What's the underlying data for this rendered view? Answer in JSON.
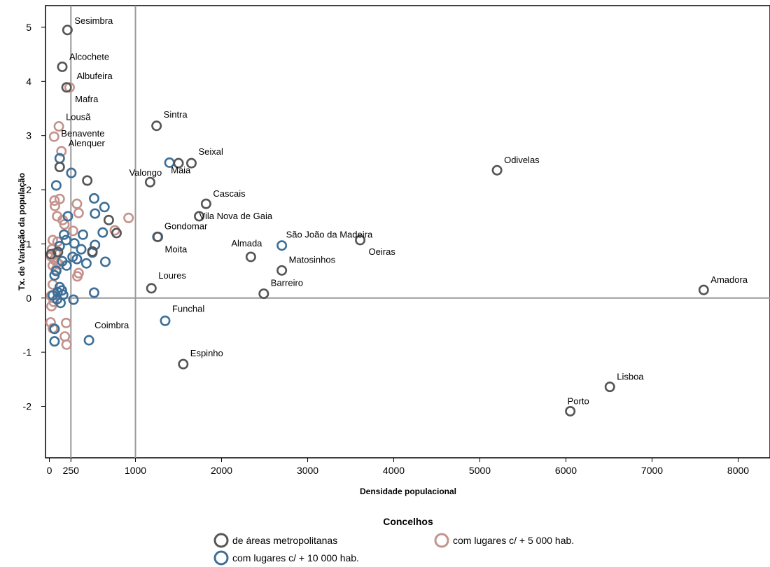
{
  "chart_data": {
    "type": "scatter",
    "xlabel": "Densidade populacional",
    "ylabel": "Tx. de Variação da população",
    "xlim": [
      -45,
      8370
    ],
    "ylim": [
      -2.95,
      5.4
    ],
    "xticks": [
      0,
      1000,
      2000,
      3000,
      4000,
      5000,
      6000,
      7000,
      8000
    ],
    "xticks_extra": [
      250
    ],
    "yticks": [
      -2,
      -1,
      0,
      1,
      2,
      3,
      4,
      5
    ],
    "reference_lines": {
      "x": [
        250,
        1000
      ],
      "y": [
        0
      ]
    },
    "grid": false,
    "legend": {
      "title": "Concelhos",
      "placement": "bottom",
      "entries": [
        {
          "label": "de áreas metropolitanas",
          "color": "#555555"
        },
        {
          "label": "com lugares c/ + 5 000 hab.",
          "color": "#c4928d"
        },
        {
          "label": "com lugares c/ + 10 000 hab.",
          "color": "#3d6f98"
        }
      ]
    },
    "series": [
      {
        "name": "de áreas metropolitanas",
        "color": "#555555",
        "points": [
          {
            "x": 210,
            "y": 4.95,
            "label": "Sesimbra"
          },
          {
            "x": 150,
            "y": 4.27,
            "label": "Alcochete"
          },
          {
            "x": 200,
            "y": 3.89,
            "label": "Mafra"
          },
          {
            "x": 120,
            "y": 2.42
          },
          {
            "x": 440,
            "y": 2.17
          },
          {
            "x": 690,
            "y": 1.44
          },
          {
            "x": 780,
            "y": 1.2
          },
          {
            "x": 500,
            "y": 0.86
          },
          {
            "x": 20,
            "y": 0.81
          },
          {
            "x": 100,
            "y": 0.85
          },
          {
            "x": 1245,
            "y": 3.18,
            "label": "Sintra"
          },
          {
            "x": 1650,
            "y": 2.49,
            "label": "Seixal"
          },
          {
            "x": 1500,
            "y": 2.49
          },
          {
            "x": 1170,
            "y": 2.14,
            "label": "Valongo"
          },
          {
            "x": 1820,
            "y": 1.74,
            "label": "Cascais"
          },
          {
            "x": 1740,
            "y": 1.51,
            "label": "Vila Nova de Gaia"
          },
          {
            "x": 1260,
            "y": 1.13,
            "label": "Moita"
          },
          {
            "x": 2340,
            "y": 0.76,
            "label": "Almada"
          },
          {
            "x": 2700,
            "y": 0.51,
            "label": "Matosinhos"
          },
          {
            "x": 2490,
            "y": 0.08,
            "label": "Barreiro"
          },
          {
            "x": 1185,
            "y": 0.18,
            "label": "Loures"
          },
          {
            "x": 1555,
            "y": -1.22,
            "label": "Espinho"
          },
          {
            "x": 3610,
            "y": 1.07,
            "label": "Oeiras"
          },
          {
            "x": 5200,
            "y": 2.36,
            "label": "Odivelas"
          },
          {
            "x": 7600,
            "y": 0.15,
            "label": "Amadora"
          },
          {
            "x": 6510,
            "y": -1.64,
            "label": "Lisboa"
          },
          {
            "x": 6050,
            "y": -2.09,
            "label": "Porto"
          }
        ]
      },
      {
        "name": "com lugares c/ + 5 000 hab.",
        "color": "#c4928d",
        "points": [
          {
            "x": 235,
            "y": 3.89,
            "label": "Albufeira"
          },
          {
            "x": 110,
            "y": 3.17,
            "label": "Lousã"
          },
          {
            "x": 55,
            "y": 2.98,
            "label": "Benavente"
          },
          {
            "x": 140,
            "y": 2.71,
            "label": "Alenquer"
          },
          {
            "x": 60,
            "y": 1.8
          },
          {
            "x": 120,
            "y": 1.83
          },
          {
            "x": 65,
            "y": 1.7
          },
          {
            "x": 320,
            "y": 1.74
          },
          {
            "x": 90,
            "y": 1.51
          },
          {
            "x": 155,
            "y": 1.44
          },
          {
            "x": 175,
            "y": 1.36
          },
          {
            "x": 340,
            "y": 1.57
          },
          {
            "x": 920,
            "y": 1.48
          },
          {
            "x": 760,
            "y": 1.25
          },
          {
            "x": 275,
            "y": 1.24
          },
          {
            "x": 40,
            "y": 1.07
          },
          {
            "x": 95,
            "y": 1.04
          },
          {
            "x": 30,
            "y": 0.9
          },
          {
            "x": 75,
            "y": 0.84
          },
          {
            "x": 20,
            "y": 0.77
          },
          {
            "x": 55,
            "y": 0.71
          },
          {
            "x": 90,
            "y": 0.65
          },
          {
            "x": 40,
            "y": 0.6
          },
          {
            "x": 75,
            "y": 0.52
          },
          {
            "x": 115,
            "y": 0.62
          },
          {
            "x": 340,
            "y": 0.46
          },
          {
            "x": 325,
            "y": 0.4
          },
          {
            "x": 40,
            "y": 0.25
          },
          {
            "x": 20,
            "y": 0.04
          },
          {
            "x": 50,
            "y": -0.07
          },
          {
            "x": 25,
            "y": -0.15
          },
          {
            "x": 15,
            "y": -0.45
          },
          {
            "x": 40,
            "y": -0.56
          },
          {
            "x": 195,
            "y": -0.46
          },
          {
            "x": 180,
            "y": -0.71
          },
          {
            "x": 200,
            "y": -0.86
          }
        ]
      },
      {
        "name": "com lugares c/ + 10 000 hab.",
        "color": "#3d6f98",
        "points": [
          {
            "x": 1395,
            "y": 2.5,
            "label": "Maia"
          },
          {
            "x": 1255,
            "y": 1.13,
            "label": "Gondomar"
          },
          {
            "x": 2700,
            "y": 0.97,
            "label": "São João da Madeira"
          },
          {
            "x": 1345,
            "y": -0.42,
            "label": "Funchal"
          },
          {
            "x": 460,
            "y": -0.78,
            "label": "Coimbra"
          },
          {
            "x": 120,
            "y": 2.58
          },
          {
            "x": 255,
            "y": 2.31
          },
          {
            "x": 80,
            "y": 2.08
          },
          {
            "x": 520,
            "y": 1.84
          },
          {
            "x": 640,
            "y": 1.68
          },
          {
            "x": 530,
            "y": 1.56
          },
          {
            "x": 215,
            "y": 1.51
          },
          {
            "x": 620,
            "y": 1.21
          },
          {
            "x": 390,
            "y": 1.17
          },
          {
            "x": 170,
            "y": 1.17
          },
          {
            "x": 195,
            "y": 1.07
          },
          {
            "x": 290,
            "y": 1.01
          },
          {
            "x": 530,
            "y": 0.98
          },
          {
            "x": 120,
            "y": 0.96
          },
          {
            "x": 370,
            "y": 0.9
          },
          {
            "x": 500,
            "y": 0.84
          },
          {
            "x": 270,
            "y": 0.76
          },
          {
            "x": 320,
            "y": 0.72
          },
          {
            "x": 150,
            "y": 0.68
          },
          {
            "x": 430,
            "y": 0.64
          },
          {
            "x": 650,
            "y": 0.67
          },
          {
            "x": 200,
            "y": 0.6
          },
          {
            "x": 80,
            "y": 0.5
          },
          {
            "x": 60,
            "y": 0.42
          },
          {
            "x": 120,
            "y": 0.2
          },
          {
            "x": 145,
            "y": 0.14
          },
          {
            "x": 95,
            "y": 0.11
          },
          {
            "x": 520,
            "y": 0.1
          },
          {
            "x": 160,
            "y": 0.06
          },
          {
            "x": 40,
            "y": 0.05
          },
          {
            "x": 280,
            "y": -0.03
          },
          {
            "x": 130,
            "y": -0.09
          },
          {
            "x": 90,
            "y": -0.02
          },
          {
            "x": 60,
            "y": -0.57
          },
          {
            "x": 60,
            "y": -0.8
          }
        ]
      }
    ]
  }
}
